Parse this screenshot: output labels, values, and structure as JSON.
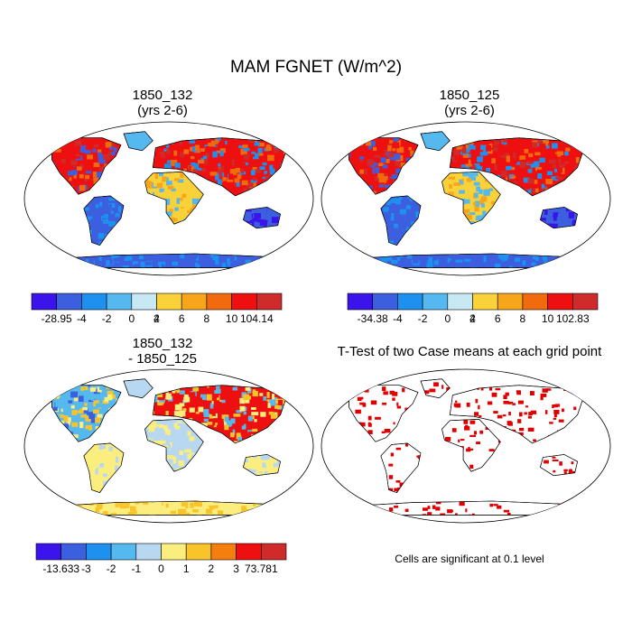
{
  "figure": {
    "title": "MAM FGNET (W/m^2)",
    "note": "Cells are significant at 0.1 level"
  },
  "panels": [
    {
      "id": "case1",
      "title_line1": "1850_132",
      "title_line2": "(yrs 2-6)"
    },
    {
      "id": "case2",
      "title_line1": "1850_125",
      "title_line2": "(yrs 2-6)"
    },
    {
      "id": "diff",
      "title_line1": "1850_132",
      "title_line2": "- 1850_125"
    },
    {
      "id": "ttest",
      "title_line1": "T-Test of two Case means at each grid point",
      "title_line2": ""
    }
  ],
  "chart_data": [
    {
      "type": "heatmap",
      "title": "1850_132 (yrs 2-6)",
      "projection": "robinson",
      "colorbar": {
        "labels": [
          "-28.95",
          "-4",
          "-2",
          "0",
          "2",
          "4",
          "6",
          "8",
          "10",
          "104.14"
        ],
        "colors": [
          "#3a14ea",
          "#3c5fe0",
          "#1e90f0",
          "#55b8ee",
          "#c8e8f4",
          "#f9d23a",
          "#f7a51b",
          "#f16a0d",
          "#ee1010",
          "#cf2b2b"
        ]
      }
    },
    {
      "type": "heatmap",
      "title": "1850_125 (yrs 2-6)",
      "projection": "robinson",
      "colorbar": {
        "labels": [
          "-34.38",
          "-4",
          "-2",
          "0",
          "2",
          "4",
          "6",
          "8",
          "10",
          "102.83"
        ],
        "colors": [
          "#3a14ea",
          "#3c5fe0",
          "#1e90f0",
          "#55b8ee",
          "#c8e8f4",
          "#f9d23a",
          "#f7a51b",
          "#f16a0d",
          "#ee1010",
          "#cf2b2b"
        ]
      }
    },
    {
      "type": "heatmap",
      "title": "1850_132 - 1850_125",
      "projection": "robinson",
      "colorbar": {
        "labels": [
          "-13.633",
          "-3",
          "-2",
          "-1",
          "0",
          "1",
          "2",
          "3",
          "73.781"
        ],
        "colors": [
          "#3a14ea",
          "#3c5fe0",
          "#1e90f0",
          "#55b8ee",
          "#b8d8f2",
          "#fbee7e",
          "#f9c32a",
          "#f57f0e",
          "#ee1010",
          "#cf2b2b"
        ]
      }
    },
    {
      "type": "heatmap",
      "title": "T-Test of two Case means at each grid point",
      "projection": "robinson",
      "significance_level": 0.1,
      "marker_color": "#e00000"
    }
  ]
}
